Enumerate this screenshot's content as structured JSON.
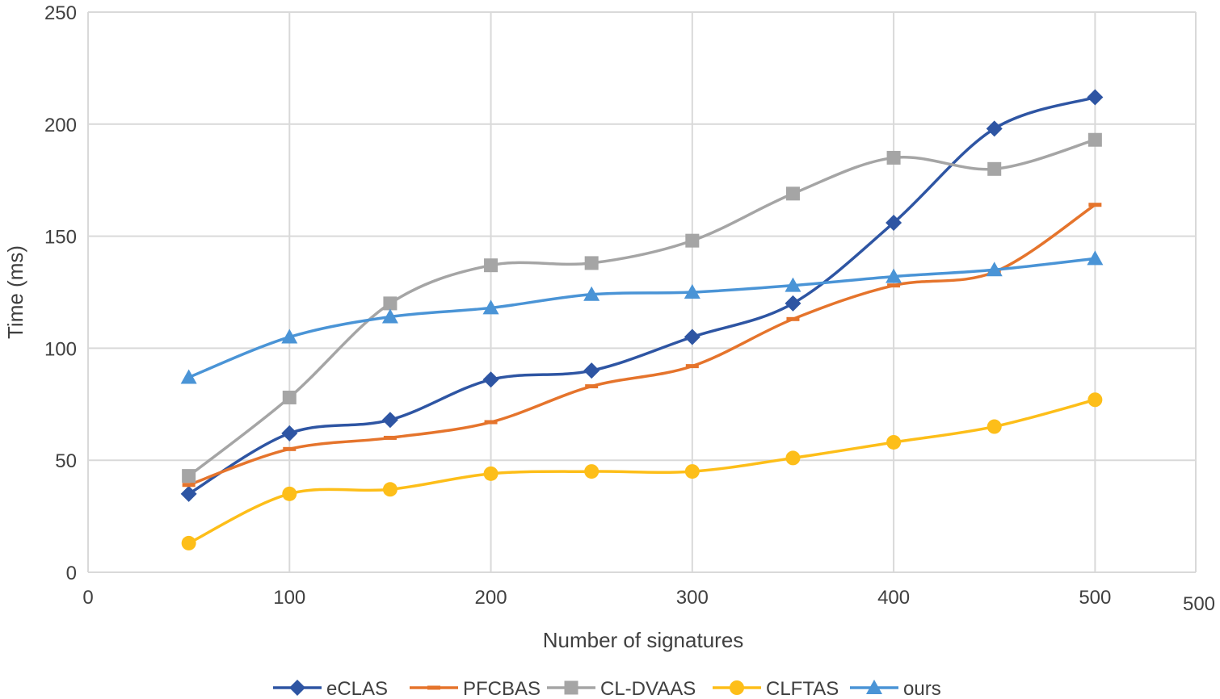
{
  "chart_data": {
    "type": "line",
    "title": "",
    "xlabel": "Number of signatures",
    "ylabel": "Time (ms)",
    "xlim": [
      0,
      550
    ],
    "ylim": [
      0,
      250
    ],
    "x_ticks": [
      0,
      100,
      200,
      300,
      400,
      500
    ],
    "x_tick_labels": [
      "0",
      "100",
      "200",
      "300",
      "400",
      "500"
    ],
    "x_extra_label": "500",
    "y_ticks": [
      0,
      50,
      100,
      150,
      200,
      250
    ],
    "y_tick_labels": [
      "0",
      "50",
      "100",
      "150",
      "200",
      "250"
    ],
    "grid": true,
    "legend_position": "bottom",
    "x": [
      50,
      100,
      150,
      200,
      250,
      300,
      350,
      400,
      450,
      500
    ],
    "series": [
      {
        "name": "eCLAS",
        "color": "#2E55A3",
        "marker": "diamond",
        "values": [
          35,
          62,
          68,
          86,
          90,
          105,
          120,
          156,
          198,
          212
        ]
      },
      {
        "name": "PFCBAS",
        "color": "#E5742C",
        "marker": "dash",
        "values": [
          39,
          55,
          60,
          67,
          83,
          92,
          113,
          128,
          134,
          164
        ]
      },
      {
        "name": "CL-DVAAS",
        "color": "#A5A5A5",
        "marker": "square",
        "values": [
          43,
          78,
          120,
          137,
          138,
          148,
          169,
          185,
          180,
          193
        ]
      },
      {
        "name": "CLFTAS",
        "color": "#FDBE19",
        "marker": "circle",
        "values": [
          13,
          35,
          37,
          44,
          45,
          45,
          51,
          58,
          65,
          77
        ]
      },
      {
        "name": "ours",
        "color": "#4A94D6",
        "marker": "triangle",
        "values": [
          87,
          105,
          114,
          118,
          124,
          125,
          128,
          132,
          135,
          140
        ]
      }
    ]
  }
}
